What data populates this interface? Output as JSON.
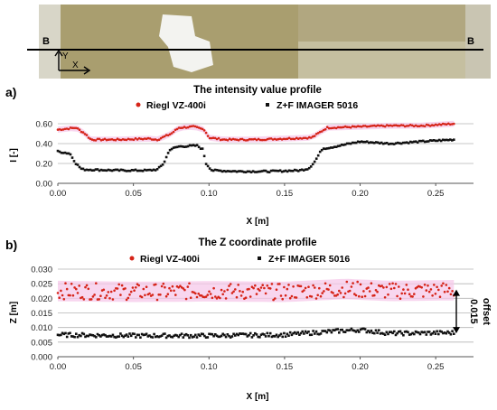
{
  "photo": {
    "left_marker": "B",
    "right_marker": "B",
    "y_axis_label": "Y",
    "x_axis_label": "X",
    "colors": {
      "sand": "#a99e6f",
      "light": "#d8d6c8",
      "patch": "#f3f3f0"
    }
  },
  "chart_data": [
    {
      "type": "scatter",
      "panel_label": "a)",
      "title": "The intensity value profile",
      "xlabel": "X [m]",
      "ylabel": "I [-]",
      "xlim": [
        0,
        0.275
      ],
      "ylim": [
        0,
        0.6
      ],
      "xticks": [
        0.0,
        0.05,
        0.1,
        0.15,
        0.2,
        0.25
      ],
      "xtick_labels": [
        "0.00",
        "0.05",
        "0.10",
        "0.15",
        "0.20",
        "0.25"
      ],
      "yticks": [
        0.0,
        0.2,
        0.4,
        0.6
      ],
      "ytick_labels": [
        "0.00",
        "0.20",
        "0.40",
        "0.60"
      ],
      "grid": "horizontal",
      "legend_position": "top",
      "series": [
        {
          "name": "Riegl VZ-400i",
          "color": "#d62418",
          "marker": "circle",
          "band_color": "#f6c8ea",
          "profile": [
            [
              0.0,
              0.54
            ],
            [
              0.012,
              0.56
            ],
            [
              0.018,
              0.5
            ],
            [
              0.022,
              0.44
            ],
            [
              0.04,
              0.44
            ],
            [
              0.06,
              0.45
            ],
            [
              0.066,
              0.44
            ],
            [
              0.075,
              0.5
            ],
            [
              0.08,
              0.56
            ],
            [
              0.09,
              0.57
            ],
            [
              0.097,
              0.54
            ],
            [
              0.1,
              0.46
            ],
            [
              0.11,
              0.44
            ],
            [
              0.13,
              0.44
            ],
            [
              0.15,
              0.45
            ],
            [
              0.168,
              0.46
            ],
            [
              0.172,
              0.5
            ],
            [
              0.178,
              0.56
            ],
            [
              0.2,
              0.57
            ],
            [
              0.22,
              0.58
            ],
            [
              0.24,
              0.58
            ],
            [
              0.262,
              0.6
            ]
          ]
        },
        {
          "name": "Z+F IMAGER 5016",
          "color": "#111111",
          "marker": "square",
          "profile": [
            [
              0.0,
              0.32
            ],
            [
              0.008,
              0.3
            ],
            [
              0.012,
              0.2
            ],
            [
              0.016,
              0.14
            ],
            [
              0.04,
              0.13
            ],
            [
              0.06,
              0.13
            ],
            [
              0.066,
              0.14
            ],
            [
              0.07,
              0.2
            ],
            [
              0.074,
              0.34
            ],
            [
              0.08,
              0.37
            ],
            [
              0.092,
              0.38
            ],
            [
              0.096,
              0.34
            ],
            [
              0.098,
              0.2
            ],
            [
              0.102,
              0.13
            ],
            [
              0.12,
              0.12
            ],
            [
              0.14,
              0.12
            ],
            [
              0.16,
              0.13
            ],
            [
              0.166,
              0.15
            ],
            [
              0.17,
              0.22
            ],
            [
              0.175,
              0.35
            ],
            [
              0.18,
              0.36
            ],
            [
              0.19,
              0.39
            ],
            [
              0.2,
              0.42
            ],
            [
              0.22,
              0.4
            ],
            [
              0.24,
              0.42
            ],
            [
              0.262,
              0.44
            ]
          ]
        }
      ]
    },
    {
      "type": "scatter",
      "panel_label": "b)",
      "title": "The Z coordinate profile",
      "xlabel": "X [m]",
      "ylabel": "Z [m]",
      "xlim": [
        0,
        0.275
      ],
      "ylim": [
        0,
        0.03
      ],
      "xticks": [
        0.0,
        0.05,
        0.1,
        0.15,
        0.2,
        0.25
      ],
      "xtick_labels": [
        "0.00",
        "0.05",
        "0.10",
        "0.15",
        "0.20",
        "0.25"
      ],
      "yticks": [
        0.0,
        0.005,
        0.01,
        0.015,
        0.02,
        0.025,
        0.03
      ],
      "ytick_labels": [
        "0.000",
        "0.005",
        "0.010",
        "0.015",
        "0.020",
        "0.025",
        "0.030"
      ],
      "grid": "horizontal",
      "legend_position": "top",
      "annotation": {
        "label": "offset",
        "value": "0.015",
        "from_y": 0.008,
        "to_y": 0.023
      },
      "series": [
        {
          "name": "Riegl VZ-400i",
          "color": "#d62418",
          "marker": "circle",
          "band_color": "#f6c8ea",
          "profile": [
            [
              0.0,
              0.0225
            ],
            [
              0.05,
              0.0222
            ],
            [
              0.1,
              0.0224
            ],
            [
              0.15,
              0.0222
            ],
            [
              0.19,
              0.0232
            ],
            [
              0.22,
              0.0225
            ],
            [
              0.262,
              0.0228
            ]
          ],
          "spread": 0.0028
        },
        {
          "name": "Z+F IMAGER 5016",
          "color": "#111111",
          "marker": "square",
          "profile": [
            [
              0.0,
              0.0075
            ],
            [
              0.05,
              0.0072
            ],
            [
              0.1,
              0.0072
            ],
            [
              0.15,
              0.0075
            ],
            [
              0.185,
              0.0088
            ],
            [
              0.2,
              0.0092
            ],
            [
              0.22,
              0.008
            ],
            [
              0.262,
              0.0082
            ]
          ],
          "spread": 0.0007
        }
      ]
    }
  ]
}
